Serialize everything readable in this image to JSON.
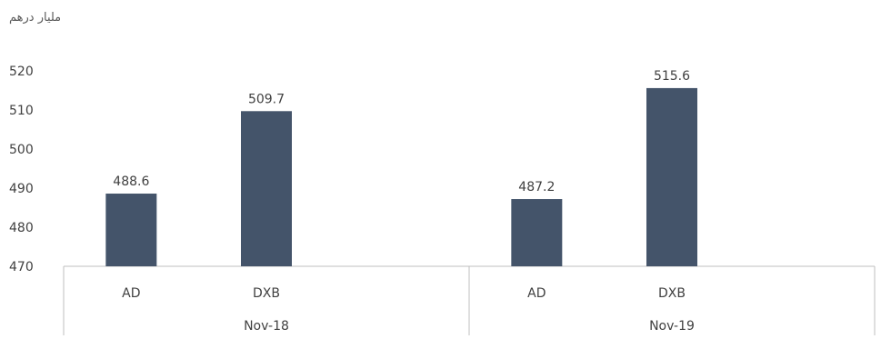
{
  "chart_data": {
    "type": "bar",
    "unit_label": "مليار درهم",
    "ylim": [
      470,
      520
    ],
    "yticks": [
      470,
      480,
      490,
      500,
      510,
      520
    ],
    "groups": [
      {
        "label": "Nov-18",
        "bars": [
          {
            "category": "AD",
            "value": 488.6,
            "data_label": "488.6"
          },
          {
            "category": "DXB",
            "value": 509.7,
            "data_label": "509.7"
          }
        ]
      },
      {
        "label": "Nov-19",
        "bars": [
          {
            "category": "AD",
            "value": 487.2,
            "data_label": "487.2"
          },
          {
            "category": "DXB",
            "value": 515.6,
            "data_label": "515.6"
          }
        ]
      }
    ],
    "bar_color": "#44546a",
    "grid": false
  }
}
